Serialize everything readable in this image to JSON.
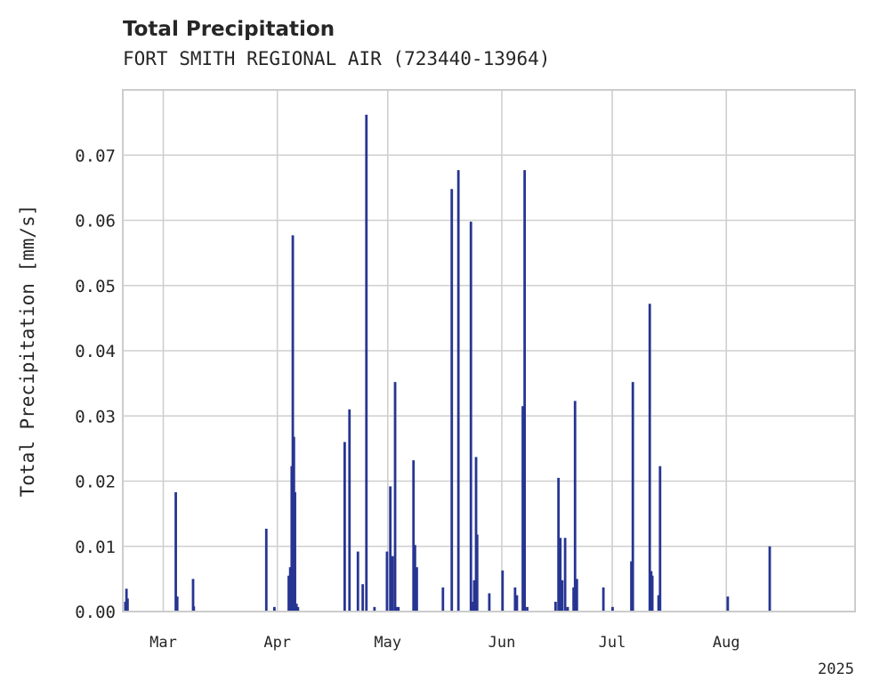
{
  "chart_data": {
    "type": "bar",
    "title": "Total Precipitation",
    "subtitle": "FORT SMITH REGIONAL AIR (723440-13964)",
    "xlabel": "",
    "ylabel": "Total Precipitation [mm/s]",
    "ylim": [
      0,
      0.08
    ],
    "yticks": [
      0.0,
      0.01,
      0.02,
      0.03,
      0.04,
      0.05,
      0.06,
      0.07
    ],
    "ytick_labels": [
      "0.00",
      "0.01",
      "0.02",
      "0.03",
      "0.04",
      "0.05",
      "0.06",
      "0.07"
    ],
    "x_range_days": [
      -11,
      188
    ],
    "x_origin_date": "2025-03-01",
    "x_units": "days since 2025-03-01",
    "xticks": [
      {
        "day": 0,
        "label": "Mar"
      },
      {
        "day": 31,
        "label": "Apr"
      },
      {
        "day": 61,
        "label": "May"
      },
      {
        "day": 92,
        "label": "Jun"
      },
      {
        "day": 122,
        "label": "Jul"
      },
      {
        "day": 153,
        "label": "Aug"
      }
    ],
    "x_offset_label": "2025",
    "grid": true,
    "series": [
      {
        "name": "Total Precipitation",
        "color": "#273592",
        "x": [
          -10.3,
          -10.0,
          -9.7,
          3.4,
          3.8,
          8.1,
          8.3,
          28.0,
          30.2,
          34.1,
          34.5,
          34.9,
          35.2,
          35.5,
          35.8,
          36.2,
          36.6,
          49.3,
          50.6,
          52.9,
          54.2,
          55.2,
          57.4,
          60.8,
          61.7,
          62.3,
          63.0,
          63.3,
          63.9,
          68.0,
          68.4,
          68.9,
          76.0,
          78.4,
          80.2,
          83.6,
          83.9,
          84.5,
          85.0,
          85.3,
          88.6,
          92.2,
          95.6,
          96.1,
          97.7,
          98.2,
          98.9,
          106.6,
          107.4,
          107.9,
          108.4,
          109.2,
          109.9,
          111.5,
          111.9,
          112.4,
          119.6,
          122.1,
          127.2,
          127.6,
          132.2,
          132.6,
          132.9,
          134.6,
          135.0,
          153.4,
          164.8
        ],
        "values": [
          0.0015,
          0.0035,
          0.002,
          0.0183,
          0.0023,
          0.005,
          0.0008,
          0.0127,
          0.0007,
          0.0055,
          0.0068,
          0.0223,
          0.0577,
          0.0268,
          0.0183,
          0.0012,
          0.0007,
          0.026,
          0.031,
          0.0092,
          0.0042,
          0.0762,
          0.0007,
          0.0092,
          0.0192,
          0.0085,
          0.0352,
          0.0007,
          0.0007,
          0.0232,
          0.0102,
          0.0068,
          0.0037,
          0.0648,
          0.0677,
          0.0598,
          0.0015,
          0.0048,
          0.0237,
          0.0118,
          0.0028,
          0.0063,
          0.0037,
          0.0025,
          0.0315,
          0.0677,
          0.0007,
          0.0015,
          0.0205,
          0.0113,
          0.0048,
          0.0113,
          0.0007,
          0.0037,
          0.0323,
          0.005,
          0.0037,
          0.0007,
          0.0077,
          0.0352,
          0.0472,
          0.0062,
          0.0055,
          0.0025,
          0.0223,
          0.0023,
          0.01
        ]
      }
    ]
  }
}
